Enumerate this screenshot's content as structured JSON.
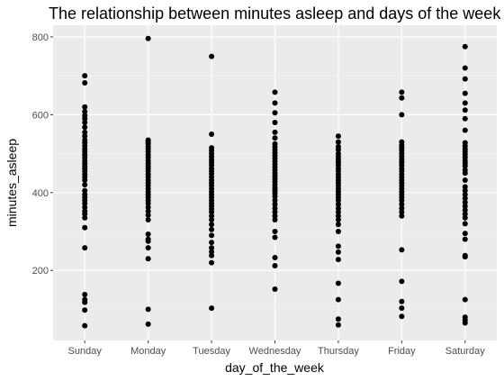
{
  "chart_data": {
    "type": "scatter",
    "title": "The relationship between minutes asleep and days of the week",
    "xlabel": "day_of_the_week",
    "ylabel": "minutes_asleep",
    "categories": [
      "Sunday",
      "Monday",
      "Tuesday",
      "Wednesday",
      "Thursday",
      "Friday",
      "Saturday"
    ],
    "ylim": [
      20,
      830
    ],
    "yticks": [
      200,
      400,
      600,
      800
    ],
    "grid": true,
    "legend": "none",
    "point_color": "#000000",
    "panel_color": "#ebebeb",
    "series": [
      {
        "category": "Sunday",
        "values": [
          58,
          98,
          118,
          125,
          138,
          258,
          310,
          335,
          345,
          352,
          362,
          372,
          380,
          388,
          395,
          405,
          420,
          432,
          440,
          447,
          455,
          462,
          468,
          475,
          482,
          490,
          497,
          505,
          512,
          520,
          528,
          535,
          545,
          555,
          568,
          580,
          590,
          598,
          608,
          620,
          682,
          700
        ]
      },
      {
        "category": "Monday",
        "values": [
          62,
          100,
          230,
          258,
          275,
          280,
          293,
          330,
          342,
          352,
          362,
          372,
          380,
          388,
          395,
          402,
          410,
          418,
          425,
          432,
          440,
          447,
          455,
          462,
          468,
          475,
          482,
          490,
          497,
          505,
          512,
          518,
          525,
          530,
          535,
          796
        ]
      },
      {
        "category": "Tuesday",
        "values": [
          103,
          220,
          238,
          248,
          258,
          272,
          290,
          305,
          318,
          330,
          340,
          350,
          358,
          365,
          372,
          380,
          388,
          395,
          402,
          410,
          418,
          425,
          432,
          440,
          448,
          455,
          462,
          470,
          478,
          485,
          492,
          500,
          508,
          515,
          550,
          750
        ]
      },
      {
        "category": "Wednesday",
        "values": [
          152,
          212,
          233,
          285,
          300,
          330,
          340,
          350,
          360,
          370,
          380,
          390,
          398,
          405,
          412,
          420,
          428,
          435,
          442,
          450,
          458,
          465,
          472,
          480,
          488,
          495,
          502,
          510,
          518,
          525,
          540,
          555,
          580,
          605,
          630,
          658
        ]
      },
      {
        "category": "Thursday",
        "values": [
          60,
          75,
          125,
          167,
          228,
          247,
          262,
          300,
          318,
          330,
          340,
          350,
          360,
          370,
          380,
          388,
          395,
          402,
          410,
          418,
          425,
          432,
          440,
          447,
          455,
          462,
          470,
          478,
          485,
          492,
          500,
          510,
          518,
          530,
          545
        ]
      },
      {
        "category": "Friday",
        "values": [
          82,
          103,
          120,
          172,
          253,
          340,
          350,
          360,
          370,
          380,
          388,
          395,
          402,
          410,
          418,
          425,
          432,
          440,
          447,
          455,
          462,
          470,
          478,
          485,
          492,
          500,
          508,
          515,
          522,
          530,
          600,
          643,
          658
        ]
      },
      {
        "category": "Saturday",
        "values": [
          65,
          72,
          80,
          125,
          235,
          238,
          280,
          295,
          320,
          335,
          345,
          355,
          365,
          375,
          385,
          395,
          405,
          415,
          432,
          450,
          458,
          468,
          475,
          482,
          490,
          498,
          505,
          512,
          520,
          528,
          560,
          590,
          612,
          630,
          655,
          692,
          720,
          775
        ]
      }
    ]
  }
}
